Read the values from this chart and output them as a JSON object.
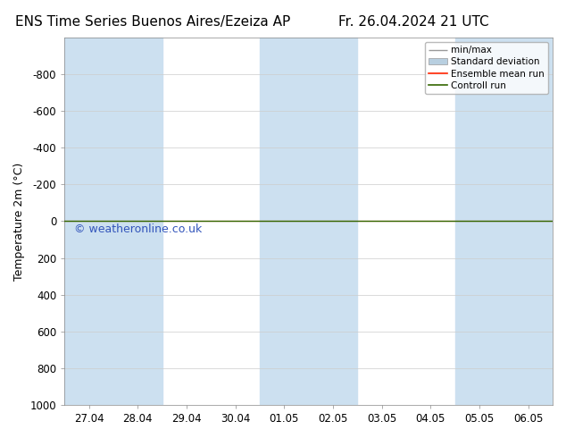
{
  "title_left": "ENS Time Series Buenos Aires/Ezeiza AP",
  "title_right": "Fr. 26.04.2024 21 UTC",
  "ylabel": "Temperature 2m (°C)",
  "watermark": "© weatheronline.co.uk",
  "ylim_top": -1000,
  "ylim_bottom": 1000,
  "yticks": [
    -800,
    -600,
    -400,
    -200,
    0,
    200,
    400,
    600,
    800,
    1000
  ],
  "x_tick_labels": [
    "27.04",
    "28.04",
    "29.04",
    "30.04",
    "01.05",
    "02.05",
    "03.05",
    "04.05",
    "05.05",
    "06.05"
  ],
  "x_tick_positions": [
    0,
    1,
    2,
    3,
    4,
    5,
    6,
    7,
    8,
    9
  ],
  "bg_color": "#ffffff",
  "plot_bg_color": "#ffffff",
  "shaded_col_color": "#cce0f0",
  "shaded_columns_xranges": [
    [
      0,
      2
    ],
    [
      4,
      6
    ],
    [
      9,
      10
    ]
  ],
  "zero_line_y": 0,
  "ensemble_mean_color": "#ff2200",
  "control_run_color": "#336600",
  "minmax_color": "#999999",
  "std_dev_color": "#b8cfe0",
  "legend_labels": [
    "min/max",
    "Standard deviation",
    "Ensemble mean run",
    "Controll run"
  ],
  "title_fontsize": 11,
  "label_fontsize": 9,
  "tick_fontsize": 8.5,
  "watermark_color": "#3355bb",
  "watermark_fontsize": 9
}
